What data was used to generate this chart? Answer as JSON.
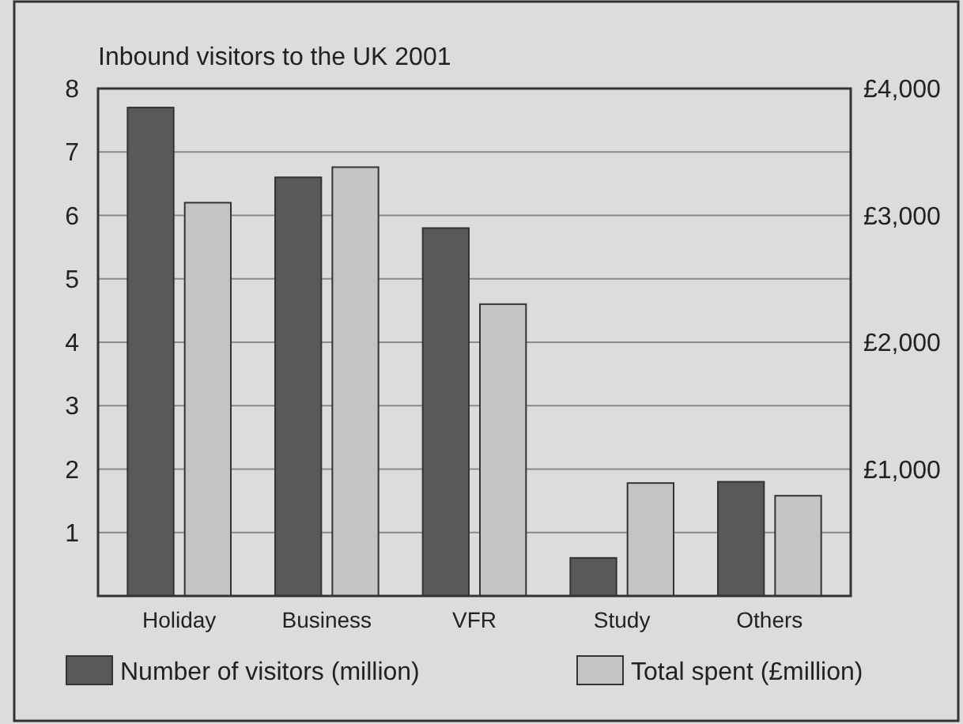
{
  "chart_data": {
    "type": "bar",
    "title": "Inbound visitors to the UK 2001",
    "categories": [
      "Holiday",
      "Business",
      "VFR",
      "Study",
      "Others"
    ],
    "series": [
      {
        "name": "Number of visitors (million)",
        "color": "#595959",
        "values": [
          7.7,
          6.6,
          5.8,
          0.6,
          1.8
        ]
      },
      {
        "name": "Total spent (£million)",
        "color": "#c4c4c4",
        "axis": "y2",
        "values": [
          3100,
          3380,
          2300,
          890,
          790
        ]
      }
    ],
    "ylim": [
      0,
      8
    ],
    "yticks": [
      1,
      2,
      3,
      4,
      5,
      6,
      7,
      8
    ],
    "y2lim": [
      0,
      4000
    ],
    "y2ticks": [
      {
        "value": 1000,
        "label": "£1,000"
      },
      {
        "value": 2000,
        "label": "£2,000"
      },
      {
        "value": 3000,
        "label": "£3,000"
      },
      {
        "value": 4000,
        "label": "£4,000"
      }
    ],
    "grid": "y",
    "legend": "bottom"
  }
}
